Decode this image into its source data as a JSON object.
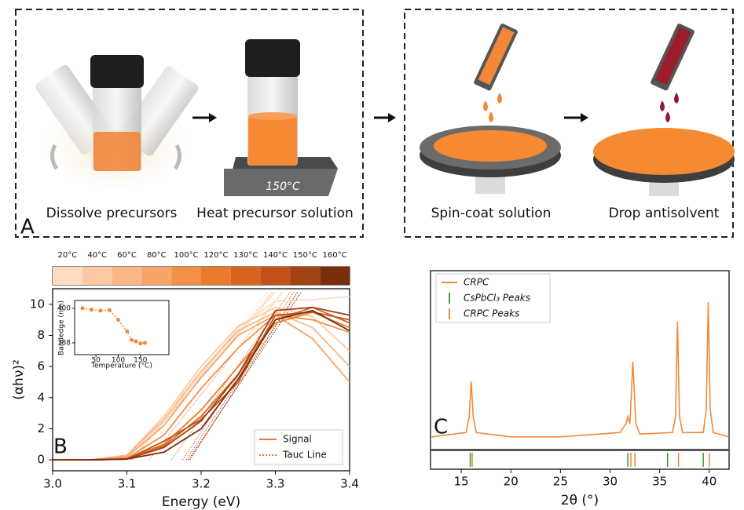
{
  "panel_a": {
    "label": "A",
    "steps": [
      "Dissolve precursors",
      "Heat precursor solution",
      "Spin-coat solution",
      "Drop antisolvent"
    ],
    "hotplate_label": "150°C"
  },
  "chart_data": [
    {
      "type": "line",
      "label": "B",
      "x_label": "Energy (eV)",
      "y_label": "(αhν)²",
      "x": [
        3.0,
        3.05,
        3.1,
        3.15,
        3.2,
        3.25,
        3.3,
        3.35,
        3.4
      ],
      "xlim": [
        3.0,
        3.4
      ],
      "ylim": [
        -0.7,
        11
      ],
      "xticks": [
        {
          "value": 3.0,
          "label": "3.0"
        },
        3.1,
        3.2,
        3.3,
        3.4
      ],
      "yticks": [
        0,
        2,
        4,
        6,
        8,
        10
      ],
      "tauc_y": [
        0,
        10.8
      ],
      "series": [
        {
          "name": "20°C",
          "color": "#fddcc2",
          "values": [
            0,
            0,
            0.2,
            2.5,
            5.5,
            8.5,
            10.2,
            10.3,
            10.5
          ],
          "tauc_x": [
            3.1,
            3.29
          ]
        },
        {
          "name": "40°C",
          "color": "#fccaa2",
          "values": [
            0,
            0,
            0.3,
            2.8,
            6,
            8.6,
            9.8,
            9.2,
            7
          ],
          "tauc_x": [
            3.105,
            3.295
          ]
        },
        {
          "name": "60°C",
          "color": "#fbb886",
          "values": [
            0,
            0,
            0.3,
            2.6,
            5.7,
            8.3,
            9.5,
            8.5,
            6
          ],
          "tauc_x": [
            3.107,
            3.297
          ]
        },
        {
          "name": "80°C",
          "color": "#f8a468",
          "values": [
            0,
            0,
            0.2,
            2.2,
            5.3,
            8.0,
            9.3,
            7.8,
            5
          ],
          "tauc_x": [
            3.106,
            3.3
          ]
        },
        {
          "name": "100°C",
          "color": "#f48f46",
          "values": [
            0,
            0,
            0.1,
            1.6,
            4.6,
            7.2,
            9.3,
            9.0,
            8.2
          ],
          "tauc_x": [
            3.13,
            3.31
          ]
        },
        {
          "name": "120°C",
          "color": "#ea7a2c",
          "values": [
            0,
            0,
            0.1,
            1.0,
            3.2,
            6.0,
            8.8,
            9.5,
            8.5
          ],
          "tauc_x": [
            3.16,
            3.32
          ]
        },
        {
          "name": "130°C",
          "color": "#d9641f",
          "values": [
            0,
            0,
            0.05,
            0.9,
            2.8,
            5.5,
            9.0,
            9.8,
            8.8
          ],
          "tauc_x": [
            3.175,
            3.325
          ]
        },
        {
          "name": "140°C",
          "color": "#c25217",
          "values": [
            0,
            0,
            0.05,
            1.2,
            2.6,
            5.0,
            9.3,
            9.5,
            9.0
          ],
          "tauc_x": [
            3.18,
            3.33
          ]
        },
        {
          "name": "150°C",
          "color": "#a34213",
          "values": [
            0,
            0,
            0.05,
            0.8,
            2.5,
            5.5,
            9.6,
            9.8,
            9.3
          ],
          "tauc_x": [
            3.185,
            3.33
          ]
        },
        {
          "name": "160°C",
          "color": "#7a2e0e",
          "values": [
            0,
            0,
            0.05,
            0.5,
            2.0,
            5.2,
            9.0,
            9.6,
            8.3
          ],
          "tauc_x": [
            3.183,
            3.335
          ]
        }
      ],
      "legend": [
        "Signal",
        "Tauc Line"
      ],
      "legend_loc": "lower right",
      "inset": {
        "x_label": "Temperature (°C)",
        "y_label": "Bandedge (nm)",
        "x": [
          20,
          40,
          60,
          80,
          100,
          120,
          130,
          140,
          150,
          160
        ],
        "values": [
          400,
          399.5,
          399.2,
          399.4,
          396,
          392,
          389,
          388.5,
          387.8,
          388
        ],
        "xlim": [
          2,
          214
        ],
        "ylim": [
          383.9,
          402.7
        ],
        "xticks": [
          50,
          100,
          150
        ],
        "yticks": [
          388,
          400
        ],
        "color": "#f08a3a"
      }
    },
    {
      "type": "line",
      "label": "C",
      "x_label": "2θ (°)",
      "xlim": [
        11.9,
        42
      ],
      "ylim": [
        0,
        12
      ],
      "xticks": [
        15,
        20,
        25,
        30,
        35,
        40
      ],
      "series": [
        {
          "name": "CRPC",
          "color": "#f08a3a",
          "x": [
            12,
            15.5,
            15.8,
            16.0,
            16.2,
            16.5,
            20,
            25,
            31.0,
            31.6,
            31.8,
            32.0,
            32.3,
            32.6,
            33,
            36.3,
            36.6,
            36.8,
            37.0,
            37.3,
            39.4,
            39.7,
            39.9,
            40.1,
            40.4,
            42
          ],
          "values": [
            0.6,
            0.9,
            2,
            4.4,
            2,
            0.9,
            0.6,
            0.6,
            0.9,
            1.5,
            2.0,
            1.5,
            5.75,
            1.5,
            0.8,
            0.9,
            2,
            8.5,
            2,
            0.9,
            0.9,
            2.5,
            9.84,
            2.5,
            0.9,
            0.6
          ]
        }
      ],
      "peaks": [
        {
          "name": "CsPbCl₃ Peaks",
          "color": "#3aa835",
          "x": [
            15.9,
            31.8,
            35.8,
            39.4
          ]
        },
        {
          "name": "CRPC Peaks",
          "color": "#f08a3a",
          "x": [
            16.1,
            32.1,
            32.5,
            36.9,
            40.0
          ]
        }
      ],
      "legend_loc": "upper left"
    }
  ]
}
